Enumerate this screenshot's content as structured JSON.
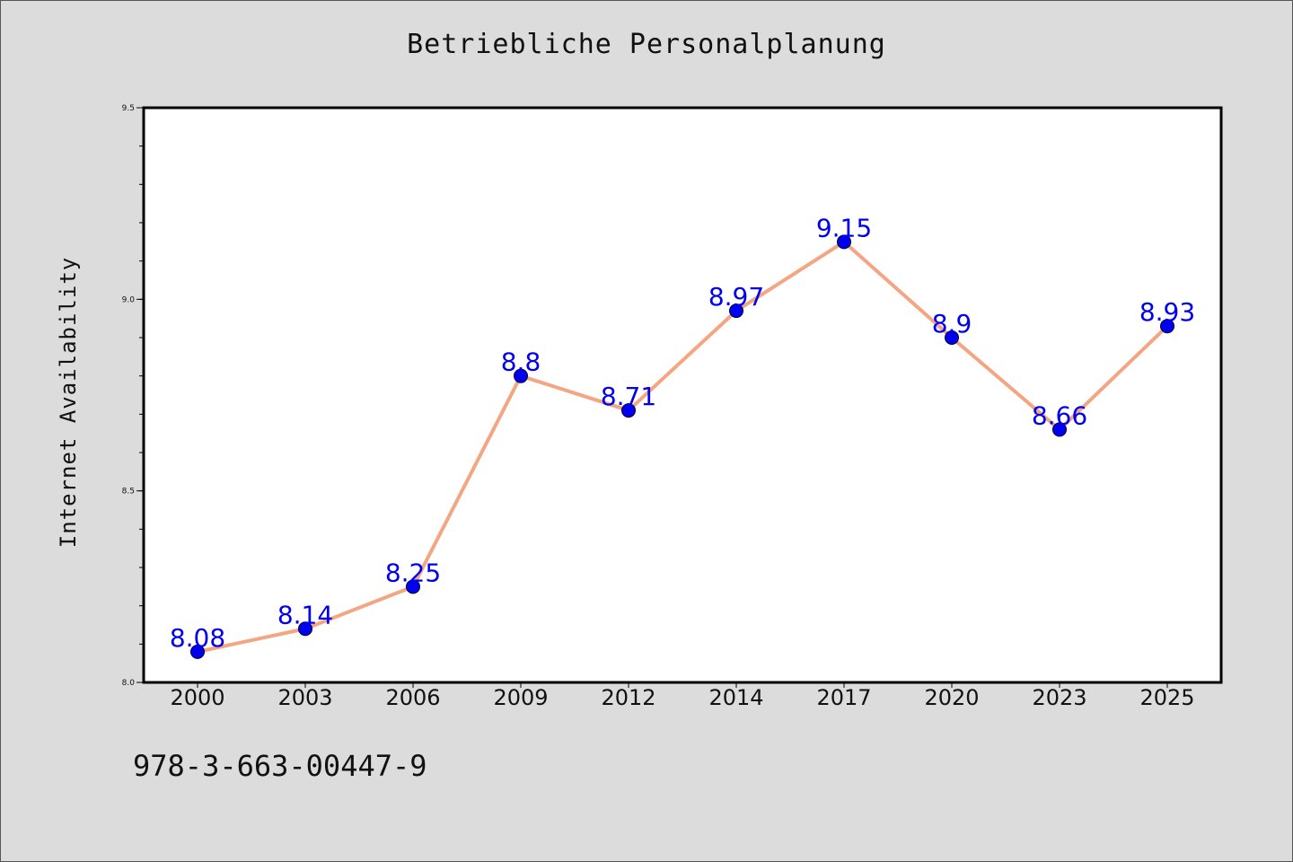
{
  "chart_data": {
    "type": "line",
    "title": "Betriebliche Personalplanung",
    "xlabel": "",
    "ylabel": "Internet Availability",
    "categories": [
      "2000",
      "2003",
      "2006",
      "2009",
      "2012",
      "2014",
      "2017",
      "2020",
      "2023",
      "2025"
    ],
    "series": [
      {
        "values": [
          8.08,
          8.14,
          8.25,
          8.8,
          8.71,
          8.97,
          9.15,
          8.9,
          8.66,
          8.93
        ],
        "labels": [
          "8.08",
          "8.14",
          "8.25",
          "8.8",
          "8.71",
          "8.97",
          "9.15",
          "8.9",
          "8.66",
          "8.93"
        ],
        "line_color": "#f4a582",
        "marker_color": "#0000ee"
      }
    ],
    "ylim": [
      8.0,
      9.5
    ],
    "yticks": [
      "8.0",
      "8.5",
      "9.0",
      "9.5"
    ],
    "grid": false,
    "legend": "none"
  },
  "footer_text": "978-3-663-00447-9",
  "colors": {
    "background": "#dcdcdc",
    "plot_background": "#ffffff",
    "line": "#f4a582",
    "marker": "#0000ee",
    "data_label": "#0000ee"
  }
}
